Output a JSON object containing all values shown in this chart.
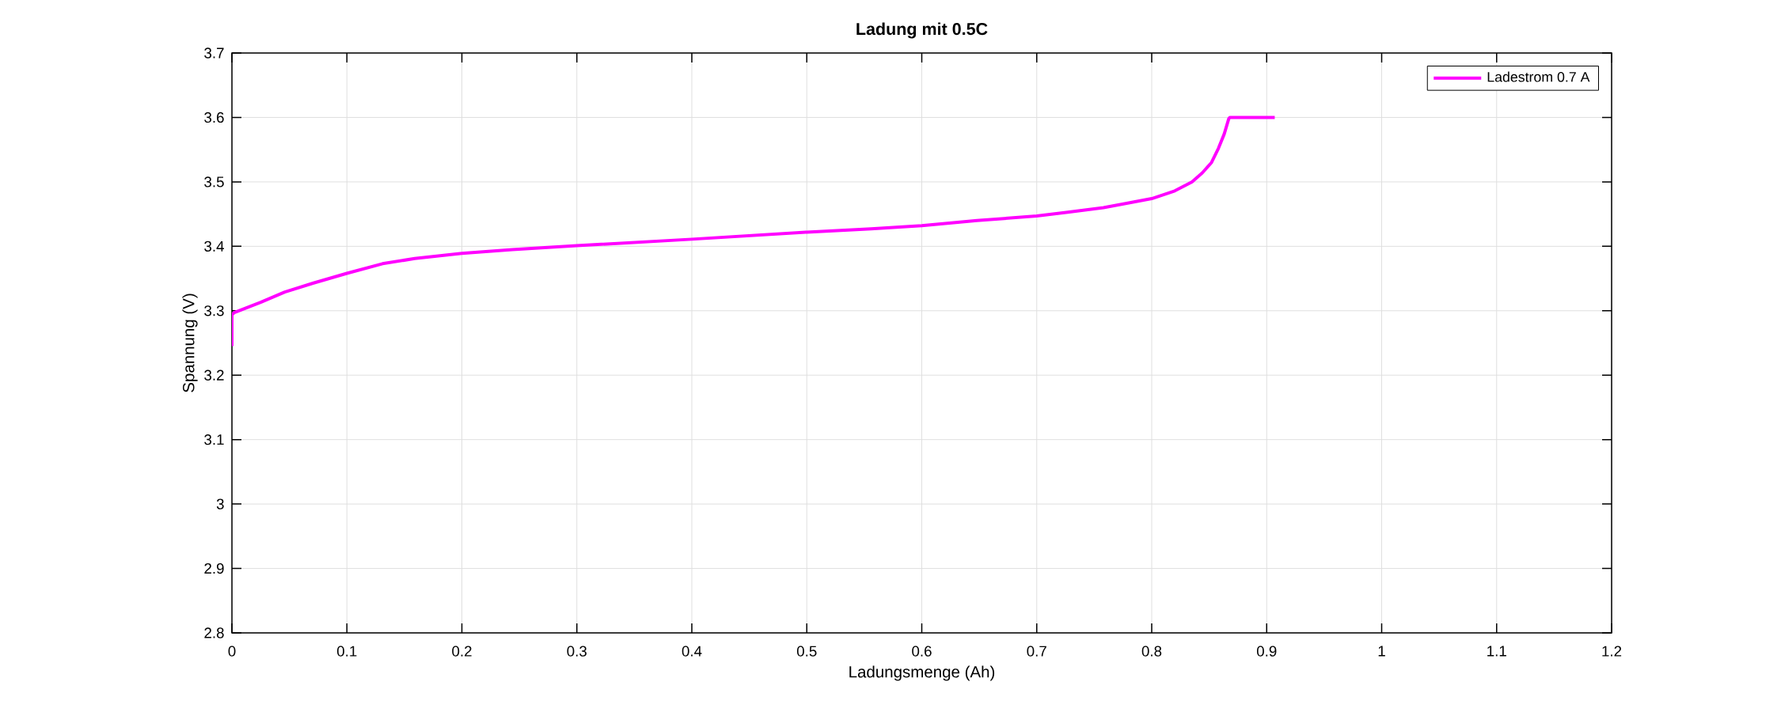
{
  "chart_data": {
    "type": "line",
    "title": "Ladung mit 0.5C",
    "xlabel": "Ladungsmenge (Ah)",
    "ylabel": "Spannung (V)",
    "xlim": [
      0,
      1.2
    ],
    "ylim": [
      2.8,
      3.7
    ],
    "xticks": [
      0,
      0.1,
      0.2,
      0.3,
      0.4,
      0.5,
      0.6,
      0.7,
      0.8,
      0.9,
      1,
      1.1,
      1.2
    ],
    "yticks": [
      2.8,
      2.9,
      3,
      3.1,
      3.2,
      3.3,
      3.4,
      3.5,
      3.6,
      3.7
    ],
    "grid": true,
    "legend": "top right",
    "marker": "none",
    "line_style": "solid",
    "series": [
      {
        "name": "Ladestrom 0.7 A",
        "color": "#ff00ff",
        "x": [
          0,
          0,
          0.002,
          0.025,
          0.046,
          0.071,
          0.1,
          0.131,
          0.159,
          0.2,
          0.244,
          0.3,
          0.4,
          0.5,
          0.556,
          0.6,
          0.648,
          0.7,
          0.727,
          0.758,
          0.8,
          0.82,
          0.835,
          0.844,
          0.852,
          0.858,
          0.863,
          0.867,
          0.868,
          0.907
        ],
        "values": [
          3.245,
          3.294,
          3.297,
          3.313,
          3.329,
          3.343,
          3.358,
          3.373,
          3.381,
          3.389,
          3.395,
          3.401,
          3.411,
          3.422,
          3.427,
          3.432,
          3.44,
          3.447,
          3.453,
          3.46,
          3.474,
          3.486,
          3.5,
          3.514,
          3.53,
          3.552,
          3.574,
          3.598,
          3.6,
          3.6
        ]
      }
    ]
  }
}
